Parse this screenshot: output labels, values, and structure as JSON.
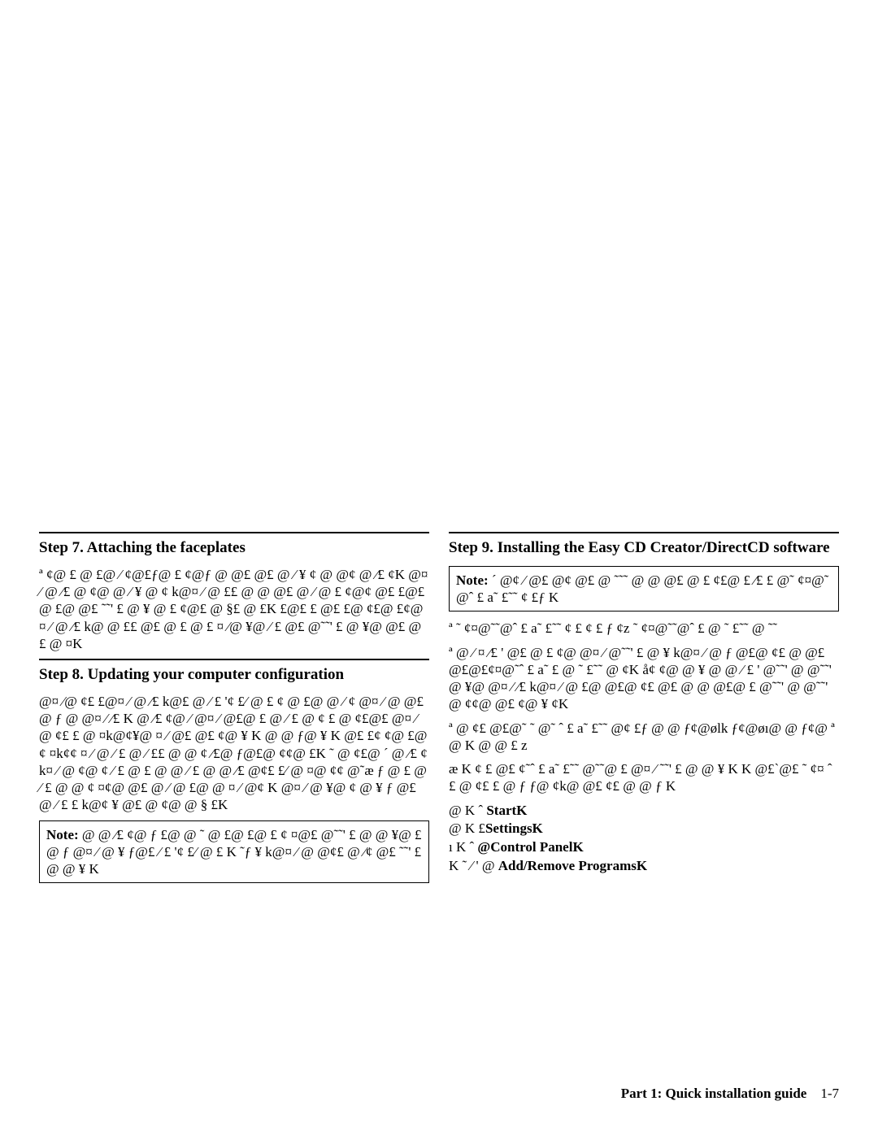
{
  "left": {
    "step7": {
      "title": "Step 7. Attaching the faceplates",
      "body": "ª ¢@ £ @ £@  ⁄ ¢@£ƒ@    £ ¢@ƒ  @    @£ @£ @ ⁄ ¥  ¢  @  @¢  @   ⁄£ ¢K   @¤ ⁄ @   ⁄£  @  ¢@ @ ⁄ ¥  @  ¢   k@¤ ⁄  @ ££  @  @ @£  @   ⁄   @    £ ¢@¢ @£ £@£  @   £@  @£ ˜˜'   £   @  ¥ @ £  ¢@£ @ §£  @    £K    £@£  £ @£  £@  ¢£@  £¢@¤ ⁄ @   ⁄£  k@  @ ££  @£ @    £  @ £ ¤ ⁄@  ¥@ ⁄ £  @£ @˜˜'   £  @  ¥@  @£ @    £ @ ¤K"
    },
    "step8": {
      "title": "Step 8. Updating your computer configuration",
      "body1": "  @¤ ⁄@  ¢£  £@¤ ⁄ @   ⁄£  k@£ @   ⁄ £  '¢ £⁄ @    £  ¢  @  £@    @  ⁄ ¢ @¤ ⁄ @    @£  @    ƒ  @  @¤ ⁄  ⁄£  K    @   ⁄£  ¢@  ⁄  @¤ ⁄ @£@ £  @   ⁄ £   @  ¢ £  @  ¢£@£  @¤ ⁄@  ¢£  £  @ ¤k@¢¥@ ¤ ⁄ @£  @£  ¢@   ¥    K   @ @  ƒ@  ¥  K   @£ £¢ ¢@ £@  ¢  ¤k¢¢ ¤ ⁄ @   ⁄ £  @   ⁄ ££  @   @  ¢    ⁄£@ ƒ@£@    ¢¢@ £K ˜ @  ¢£@ ´ @   ⁄£  ¢k¤ ⁄ @  ¢@  ¢  ⁄ £   @   £   @    @  ⁄   £  @   @  ⁄£  @¢£  £⁄ @  ¤@    ¢¢  @˜æ ƒ  @ £ @    ⁄ £   @    @  ¢  ¤¢@  @£ @ ⁄   @  £@    @ ¤ ⁄ @¢  K    @¤ ⁄ @  ¥@    ¢  @  ¥  ƒ  @£ @   ⁄ £  £  k@¢  ¥ @£  @    ¢@  @  § £K",
      "note": "  @  @   ⁄£  ¢@ ƒ £@  @ ˜ @  £@    £@ £  ¢  ¤@£  @˜˜'   £  @  @  ¥@     £  @ ƒ  @¤ ⁄ @  ¥  ƒ@£   ⁄ £  '¢ £⁄ @    £  K ˜ƒ ¥  k@¤ ⁄ @  @¢£  @ ⁄¢  @£  ˜˜'   £  @  @  ¥  K"
    }
  },
  "right": {
    "step9": {
      "title": "Step 9.  Installing the Easy CD Creator/DirectCD software",
      "note": "´ @¢ ⁄  @£  @¢  @£  @ ˜˜˜ @    @  @£  @  £  ¢£@    £  ⁄£  £    @˜ ¢¤@˜ @ˆ £ a˜  £˜˜  ¢  £ƒ  K",
      "body1": "ª    ˜ ¢¤@˜˜@ˆ £ a˜  £˜˜     ¢  £  ¢ £     ƒ       ¢z    ˜ ¢¤@˜˜@ˆ  £   @   ˜  £˜˜  @    ˜˜",
      "body2": "ª @ ⁄  ¤ ⁄£  ' @£  @     £  ¢@  @¤ ⁄ @˜˜'   £  @  ¥  k@¤ ⁄ @ ƒ  @£@  ¢£  @  @£  @£@£¢¤@˜ˆ £ a˜  £    @   ˜  £˜˜  @    ¢K å¢   ¢@  @  ¥  @  @ ⁄ £  '  @˜˜'  @  @˜˜'  @  ¥@  @¤ ⁄  ⁄£  k@¤ ⁄ @  £@    @£@  ¢£  @£ @    @    @£@  £  @˜˜'  @ @˜˜'  @  ¢¢@  @£  ¢@  ¥ ¢K",
      "body3": "ª @  ¢£  @£@˜ ˜ @˜ ˆ £ a˜  £˜˜     @¢  £ƒ  @  @   ƒ¢@ølk  ƒ¢@øı@  @    ƒ¢@ ª @ K  @  @  £  z",
      "body4": "   æ K     ¢  £ @£  ¢˜ˆ £ a˜  £˜˜     @˜˜@  £ @¤ ⁄ ˜˜'    £  @  @  ¥  K  K   @£`@£  ˜ ¢¤ ˆ £      @  ¢£  £  @ ƒ   ƒ@    ¢k@  @£  ¢£  @  @   ƒ K",
      "menu": [
        {
          "prefix": "@  K  ˆ    ",
          "label": "StartK"
        },
        {
          "prefix": "@  K      £",
          "label": "SettingsK"
        },
        {
          "prefix": "   ı K  ˆ      ",
          "label": "@Control PanelK"
        },
        {
          "prefix": "  K  ˜ ⁄   '    @    ",
          "label": "Add/Remove ProgramsK"
        }
      ]
    }
  },
  "footer": {
    "part": "Part 1:  Quick installation guide",
    "page": "1-7"
  }
}
